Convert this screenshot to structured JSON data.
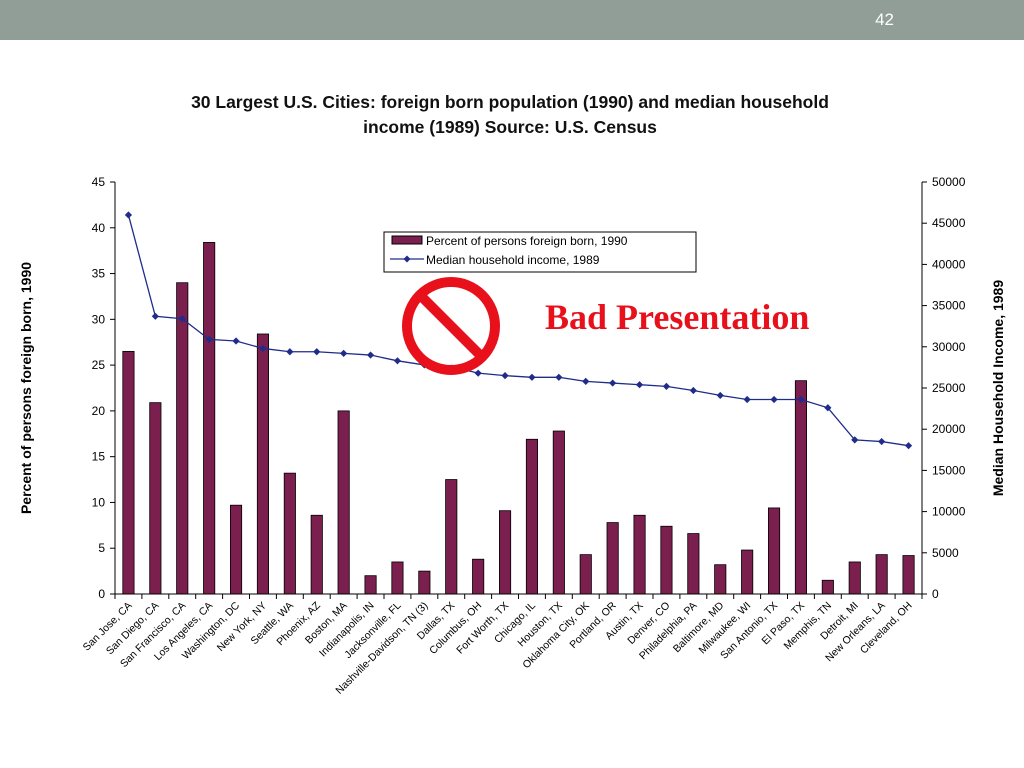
{
  "slide": {
    "number": "42"
  },
  "title_line1": "30 Largest U.S. Cities:  foreign born population (1990) and median household",
  "title_line2": "income (1989)  Source:  U.S. Census",
  "annotation": {
    "text": "Bad Presentation",
    "icon": "prohibition-icon",
    "color": "#e8111b"
  },
  "colors": {
    "topbar": "#919e98",
    "bar": "#7b1f4f",
    "line": "#1f2c8a"
  },
  "chart_data": {
    "type": "bar",
    "title": "30 Largest U.S. Cities:  foreign born population (1990) and median household income (1989)  Source:  U.S. Census",
    "categories": [
      "San Jose, CA",
      "San Diego, CA",
      "San Francisco, CA",
      "Los Angeles, CA",
      "Washington, DC",
      "New York, NY",
      "Seattle, WA",
      "Phoenix, AZ",
      "Boston, MA",
      "Indianapolis, IN",
      "Jacksonville, FL",
      "Nashville-Davidson, TN (3)",
      "Dallas, TX",
      "Columbus, OH",
      "Fort Worth, TX",
      "Chicago, IL",
      "Houston, TX",
      "Oklahoma City, OK",
      "Portland, OR",
      "Austin, TX",
      "Denver, CO",
      "Philadelphia, PA",
      "Baltimore, MD",
      "Milwaukee, WI",
      "San Antonio, TX",
      "El Paso, TX",
      "Memphis, TN",
      "Detroit, MI",
      "New Orleans, LA",
      "Cleveland, OH"
    ],
    "series": [
      {
        "name": "Percent of persons foreign born, 1990",
        "axis": "left",
        "kind": "bar",
        "values": [
          26.5,
          20.9,
          34.0,
          38.4,
          9.7,
          28.4,
          13.2,
          8.6,
          20.0,
          2.0,
          3.5,
          2.5,
          12.5,
          3.8,
          9.1,
          16.9,
          17.8,
          4.3,
          7.8,
          8.6,
          7.4,
          6.6,
          3.2,
          4.8,
          9.4,
          23.3,
          1.5,
          3.5,
          4.3,
          4.2
        ]
      },
      {
        "name": "Median household income, 1989",
        "axis": "right",
        "kind": "line",
        "values": [
          46000,
          33700,
          33400,
          30900,
          30700,
          29800,
          29400,
          29400,
          29200,
          29000,
          28300,
          27800,
          27600,
          26800,
          26500,
          26300,
          26300,
          25800,
          25600,
          25400,
          25200,
          24700,
          24100,
          23600,
          23600,
          23600,
          22600,
          18700,
          18500,
          18000
        ]
      }
    ],
    "ylabel": "Percent of persons foreign born, 1990",
    "ylabel_right": "Median Household Income, 1989",
    "ylim": [
      0,
      45
    ],
    "ylim_right": [
      0,
      50000
    ],
    "yticks": [
      "0",
      "5",
      "10",
      "15",
      "20",
      "25",
      "30",
      "35",
      "40",
      "45"
    ],
    "yticks_right": [
      "0",
      "5000",
      "10000",
      "15000",
      "20000",
      "25000",
      "30000",
      "35000",
      "40000",
      "45000",
      "50000"
    ],
    "legend": [
      "Percent of persons foreign born, 1990",
      "Median household income, 1989"
    ],
    "legend_position": "top-center",
    "grid": false
  }
}
